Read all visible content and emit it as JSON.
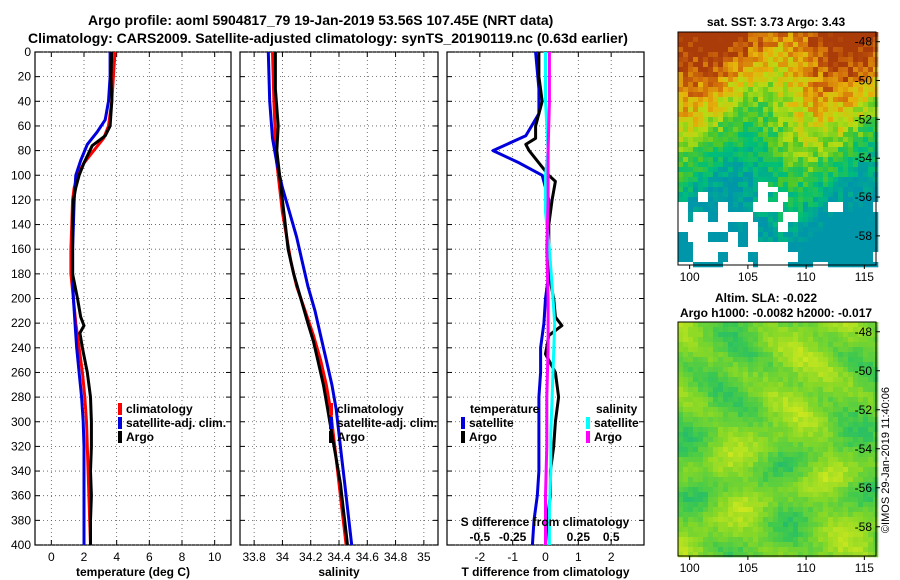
{
  "title": {
    "line1": "Argo profile: aoml 5904817_79 19-Jan-2019 53.56S 107.45E (NRT data)",
    "line2": "Climatology: CARS2009. Satellite-adjusted climatology: synTS_20190119.nc (0.63d earlier)"
  },
  "watermark": "©IMOS 29-Jan-2019 11:40:06",
  "colors": {
    "climatology": "#ff0000",
    "satellite": "#0000dd",
    "argo": "#000000",
    "sal_satellite": "#00ffff",
    "sal_argo": "#ff00ff"
  },
  "chart_data": [
    {
      "id": "temperature",
      "type": "line",
      "xlabel": "temperature (deg C)",
      "ylabel": "",
      "xlim": [
        -1,
        11
      ],
      "ylim": [
        0,
        400
      ],
      "xticks": [
        0,
        2,
        4,
        6,
        8,
        10
      ],
      "xtick_labels": [
        "0",
        "2",
        "4",
        "6",
        "8",
        "10"
      ],
      "yticks": [
        0,
        20,
        40,
        60,
        80,
        100,
        120,
        140,
        160,
        180,
        200,
        220,
        240,
        260,
        280,
        300,
        320,
        340,
        360,
        380,
        400
      ],
      "ytick_labels": [
        "0",
        "20",
        "40",
        "60",
        "80",
        "100",
        "120",
        "140",
        "160",
        "180",
        "200",
        "220",
        "240",
        "260",
        "280",
        "300",
        "320",
        "340",
        "360",
        "380",
        "400"
      ],
      "grid": true,
      "legend": [
        "climatology",
        "satellite-adj. clim.",
        "Argo"
      ],
      "series": [
        {
          "name": "climatology",
          "color": "#ff0000",
          "points": [
            [
              3.9,
              0
            ],
            [
              3.8,
              20
            ],
            [
              3.7,
              40
            ],
            [
              3.5,
              60
            ],
            [
              3.2,
              70
            ],
            [
              2.6,
              80
            ],
            [
              2.0,
              90
            ],
            [
              1.6,
              100
            ],
            [
              1.4,
              110
            ],
            [
              1.3,
              120
            ],
            [
              1.25,
              140
            ],
            [
              1.2,
              160
            ],
            [
              1.2,
              180
            ],
            [
              1.35,
              200
            ],
            [
              1.5,
              220
            ],
            [
              1.7,
              240
            ],
            [
              1.9,
              260
            ],
            [
              2.05,
              280
            ],
            [
              2.15,
              300
            ],
            [
              2.2,
              320
            ],
            [
              2.25,
              340
            ],
            [
              2.3,
              360
            ],
            [
              2.35,
              380
            ],
            [
              2.4,
              400
            ]
          ]
        },
        {
          "name": "satellite-adj. clim.",
          "color": "#0000dd",
          "points": [
            [
              3.6,
              0
            ],
            [
              3.6,
              20
            ],
            [
              3.5,
              40
            ],
            [
              3.3,
              55
            ],
            [
              2.8,
              65
            ],
            [
              2.2,
              75
            ],
            [
              1.8,
              88
            ],
            [
              1.5,
              100
            ],
            [
              1.4,
              120
            ],
            [
              1.35,
              140
            ],
            [
              1.3,
              160
            ],
            [
              1.3,
              180
            ],
            [
              1.35,
              200
            ],
            [
              1.45,
              220
            ],
            [
              1.55,
              240
            ],
            [
              1.7,
              260
            ],
            [
              1.85,
              280
            ],
            [
              1.95,
              300
            ],
            [
              2.0,
              320
            ],
            [
              2.0,
              340
            ],
            [
              2.0,
              360
            ],
            [
              2.0,
              380
            ],
            [
              2.0,
              400
            ]
          ]
        },
        {
          "name": "Argo",
          "color": "#000000",
          "points": [
            [
              3.7,
              0
            ],
            [
              3.65,
              20
            ],
            [
              3.7,
              40
            ],
            [
              3.6,
              60
            ],
            [
              3.3,
              68
            ],
            [
              2.5,
              76
            ],
            [
              2.0,
              90
            ],
            [
              1.7,
              100
            ],
            [
              1.5,
              110
            ],
            [
              1.35,
              120
            ],
            [
              1.3,
              140
            ],
            [
              1.3,
              160
            ],
            [
              1.3,
              180
            ],
            [
              1.6,
              200
            ],
            [
              1.8,
              215
            ],
            [
              2.0,
              222
            ],
            [
              1.75,
              228
            ],
            [
              1.9,
              240
            ],
            [
              2.2,
              260
            ],
            [
              2.4,
              280
            ],
            [
              2.45,
              300
            ],
            [
              2.45,
              320
            ],
            [
              2.4,
              340
            ],
            [
              2.45,
              360
            ],
            [
              2.4,
              380
            ],
            [
              2.4,
              400
            ]
          ]
        }
      ]
    },
    {
      "id": "salinity",
      "type": "line",
      "xlabel": "salinity",
      "xlim": [
        33.7,
        35.1
      ],
      "ylim": [
        0,
        400
      ],
      "xticks": [
        33.8,
        34.0,
        34.2,
        34.4,
        34.6,
        34.8,
        35.0
      ],
      "xtick_labels": [
        "33.8",
        "34",
        "34.2",
        "34.4",
        "34.6",
        "34.8",
        "35"
      ],
      "grid": true,
      "legend": [
        "climatology",
        "satellite-adj. clim.",
        "Argo"
      ],
      "series": [
        {
          "name": "climatology",
          "color": "#ff0000",
          "points": [
            [
              33.93,
              0
            ],
            [
              33.94,
              40
            ],
            [
              33.95,
              70
            ],
            [
              33.96,
              90
            ],
            [
              33.98,
              110
            ],
            [
              34.0,
              130
            ],
            [
              34.03,
              150
            ],
            [
              34.06,
              170
            ],
            [
              34.1,
              190
            ],
            [
              34.16,
              210
            ],
            [
              34.22,
              230
            ],
            [
              34.27,
              250
            ],
            [
              34.31,
              270
            ],
            [
              34.34,
              290
            ],
            [
              34.36,
              310
            ],
            [
              34.38,
              330
            ],
            [
              34.4,
              350
            ],
            [
              34.42,
              370
            ],
            [
              34.44,
              390
            ],
            [
              34.45,
              400
            ]
          ]
        },
        {
          "name": "satellite-adj. clim.",
          "color": "#0000dd",
          "points": [
            [
              33.9,
              0
            ],
            [
              33.91,
              40
            ],
            [
              33.93,
              70
            ],
            [
              33.96,
              90
            ],
            [
              34.0,
              110
            ],
            [
              34.05,
              130
            ],
            [
              34.1,
              150
            ],
            [
              34.14,
              170
            ],
            [
              34.18,
              190
            ],
            [
              34.23,
              210
            ],
            [
              34.27,
              230
            ],
            [
              34.31,
              250
            ],
            [
              34.35,
              270
            ],
            [
              34.38,
              290
            ],
            [
              34.4,
              310
            ],
            [
              34.42,
              330
            ],
            [
              34.44,
              350
            ],
            [
              34.46,
              370
            ],
            [
              34.48,
              390
            ],
            [
              34.49,
              400
            ]
          ]
        },
        {
          "name": "Argo",
          "color": "#000000",
          "points": [
            [
              33.95,
              0
            ],
            [
              33.95,
              30
            ],
            [
              33.97,
              60
            ],
            [
              33.96,
              80
            ],
            [
              33.98,
              100
            ],
            [
              34.0,
              120
            ],
            [
              34.02,
              140
            ],
            [
              34.04,
              160
            ],
            [
              34.08,
              180
            ],
            [
              34.13,
              200
            ],
            [
              34.18,
              220
            ],
            [
              34.22,
              235
            ],
            [
              34.25,
              250
            ],
            [
              34.29,
              270
            ],
            [
              34.32,
              290
            ],
            [
              34.35,
              310
            ],
            [
              34.38,
              330
            ],
            [
              34.41,
              350
            ],
            [
              34.43,
              370
            ],
            [
              34.45,
              390
            ],
            [
              34.46,
              400
            ]
          ]
        }
      ]
    },
    {
      "id": "difference",
      "type": "line",
      "xlabel": "T difference from climatology",
      "top_xlabel": "S difference from climatology",
      "xlim": [
        -3,
        3
      ],
      "ylim": [
        0,
        400
      ],
      "xticks": [
        -2,
        -1,
        0,
        1,
        2
      ],
      "xtick_labels": [
        "-2",
        "-1",
        "0",
        "1",
        "2"
      ],
      "top_xticks": [
        -0.5,
        -0.25,
        0.25,
        0.5
      ],
      "top_xtick_labels": [
        "-0.5",
        "-0.25",
        "0.25",
        "0.5"
      ],
      "top_xlim": [
        -0.75,
        0.75
      ],
      "grid": true,
      "legend_temperature": {
        "title": "temperature",
        "items": [
          "satellite",
          "Argo"
        ]
      },
      "legend_salinity": {
        "title": "salinity",
        "items": [
          "satellite",
          "Argo"
        ]
      },
      "series": [
        {
          "name": "T satellite",
          "color": "#0000dd",
          "axis": "bottom",
          "points": [
            [
              -0.3,
              0
            ],
            [
              -0.2,
              30
            ],
            [
              -0.2,
              50
            ],
            [
              -0.6,
              68
            ],
            [
              -1.6,
              80
            ],
            [
              -0.8,
              90
            ],
            [
              -0.1,
              100
            ],
            [
              0.1,
              120
            ],
            [
              0.05,
              140
            ],
            [
              0.1,
              160
            ],
            [
              0.1,
              180
            ],
            [
              0.0,
              200
            ],
            [
              -0.05,
              220
            ],
            [
              -0.15,
              240
            ],
            [
              -0.15,
              260
            ],
            [
              -0.2,
              280
            ],
            [
              -0.2,
              300
            ],
            [
              -0.2,
              320
            ],
            [
              -0.2,
              340
            ],
            [
              -0.25,
              360
            ],
            [
              -0.35,
              380
            ],
            [
              -0.4,
              400
            ]
          ]
        },
        {
          "name": "T Argo",
          "color": "#000000",
          "axis": "bottom",
          "points": [
            [
              -0.2,
              0
            ],
            [
              -0.2,
              20
            ],
            [
              -0.1,
              40
            ],
            [
              -0.3,
              60
            ],
            [
              -0.3,
              70
            ],
            [
              -0.6,
              75
            ],
            [
              -0.5,
              80
            ],
            [
              -0.2,
              90
            ],
            [
              0.1,
              100
            ],
            [
              0.3,
              105
            ],
            [
              0.2,
              120
            ],
            [
              0.1,
              140
            ],
            [
              0.1,
              160
            ],
            [
              0.1,
              180
            ],
            [
              0.25,
              200
            ],
            [
              0.3,
              215
            ],
            [
              0.5,
              222
            ],
            [
              0.1,
              230
            ],
            [
              0.0,
              245
            ],
            [
              0.3,
              260
            ],
            [
              0.4,
              280
            ],
            [
              0.3,
              300
            ],
            [
              0.25,
              320
            ],
            [
              0.15,
              340
            ],
            [
              0.15,
              360
            ],
            [
              0.05,
              380
            ],
            [
              0.0,
              400
            ]
          ]
        },
        {
          "name": "S satellite",
          "color": "#00ffff",
          "axis": "top",
          "points": [
            [
              0.0,
              0
            ],
            [
              0.0,
              40
            ],
            [
              0.02,
              80
            ],
            [
              0.0,
              100
            ],
            [
              0.0,
              130
            ],
            [
              0.03,
              160
            ],
            [
              0.05,
              190
            ],
            [
              0.07,
              220
            ],
            [
              0.06,
              250
            ],
            [
              0.05,
              280
            ],
            [
              0.04,
              310
            ],
            [
              0.04,
              340
            ],
            [
              0.03,
              370
            ],
            [
              0.03,
              400
            ]
          ]
        },
        {
          "name": "S Argo",
          "color": "#ff00ff",
          "axis": "top",
          "points": [
            [
              0.03,
              0
            ],
            [
              0.03,
              40
            ],
            [
              0.02,
              80
            ],
            [
              0.02,
              120
            ],
            [
              0.01,
              160
            ],
            [
              0.02,
              200
            ],
            [
              0.02,
              240
            ],
            [
              0.01,
              280
            ],
            [
              0.01,
              320
            ],
            [
              0.0,
              360
            ],
            [
              0.0,
              400
            ]
          ]
        }
      ]
    },
    {
      "id": "sst_map",
      "type": "heatmap",
      "title": "sat. SST: 3.73 Argo: 3.43",
      "xlim": [
        99,
        116
      ],
      "ylim": [
        -59.5,
        -47.5
      ],
      "xticks": [
        100,
        105,
        110,
        115
      ],
      "xtick_labels": [
        "100",
        "105",
        "110",
        "115"
      ],
      "yticks": [
        -48,
        -50,
        -52,
        -54,
        -56,
        -58
      ],
      "ytick_labels": [
        "-48",
        "-50",
        "-52",
        "-54",
        "-56",
        "-58"
      ]
    },
    {
      "id": "sla_map",
      "type": "heatmap",
      "title": "Altim. SLA: -0.022",
      "subtitle": "Argo h1000: -0.0082 h2000: -0.017",
      "xlim": [
        99,
        116
      ],
      "ylim": [
        -59.5,
        -47.5
      ],
      "xticks": [
        100,
        105,
        110,
        115
      ],
      "xtick_labels": [
        "100",
        "105",
        "110",
        "115"
      ],
      "yticks": [
        -48,
        -50,
        -52,
        -54,
        -56,
        -58
      ],
      "ytick_labels": [
        "-48",
        "-50",
        "-52",
        "-54",
        "-56",
        "-58"
      ]
    }
  ]
}
